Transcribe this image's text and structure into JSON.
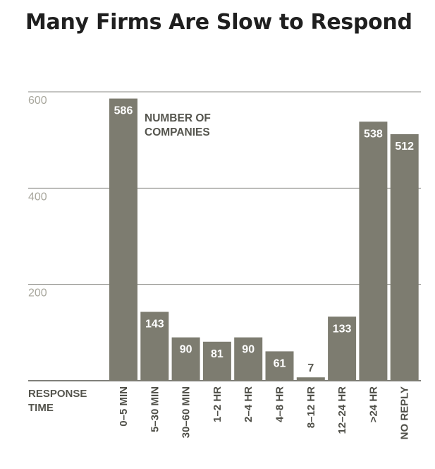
{
  "chart_data": {
    "type": "bar",
    "title": "Many Firms Are Slow to Respond",
    "annotation": [
      "NUMBER OF",
      "COMPANIES"
    ],
    "xlabel": [
      "RESPONSE",
      "TIME"
    ],
    "ylabel": "",
    "ylim": [
      0,
      600
    ],
    "yticks": [
      "600",
      "400",
      "200"
    ],
    "grid": true,
    "bar_color": "#7d7c70",
    "categories": [
      "0–5 MIN",
      "5–30 MIN",
      "30–60 MIN",
      "1–2 HR",
      "2–4 HR",
      "4–8 HR",
      "8–12 HR",
      "12–24 HR",
      ">24 HR",
      "NO REPLY"
    ],
    "values": [
      586,
      143,
      90,
      81,
      90,
      61,
      7,
      133,
      538,
      512
    ],
    "value_labels": [
      "586",
      "143",
      "90",
      "81",
      "90",
      "61",
      "7",
      "133",
      "538",
      "512"
    ]
  }
}
